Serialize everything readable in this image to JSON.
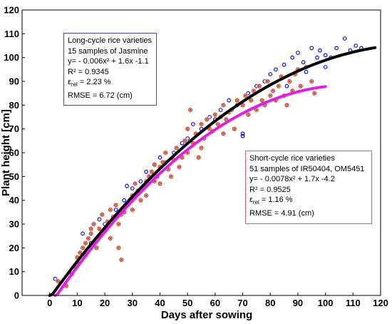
{
  "chart_data": {
    "type": "scatter",
    "title": "",
    "xlabel": "Days after sowing",
    "ylabel": "Plant height [cm]",
    "xlim": [
      -10,
      120
    ],
    "ylim": [
      0,
      120
    ],
    "x_ticks": [
      "0",
      "10",
      "20",
      "30",
      "40",
      "50",
      "60",
      "70",
      "80",
      "90",
      "100",
      "110",
      "120"
    ],
    "y_ticks": [
      "0",
      "10",
      "20",
      "30",
      "40",
      "50",
      "60",
      "70",
      "80",
      "90",
      "100",
      "110",
      "120"
    ],
    "grid": false,
    "series": [
      {
        "group": "long-cycle",
        "marker": "circle",
        "color": "#1010e0",
        "points": [
          [
            2,
            7
          ],
          [
            12,
            26
          ],
          [
            15,
            22
          ],
          [
            18,
            32
          ],
          [
            20,
            30
          ],
          [
            24,
            36
          ],
          [
            27,
            40
          ],
          [
            28,
            46
          ],
          [
            30,
            45
          ],
          [
            33,
            48
          ],
          [
            35,
            52
          ],
          [
            38,
            55
          ],
          [
            40,
            58
          ],
          [
            42,
            56
          ],
          [
            45,
            60
          ],
          [
            48,
            64
          ],
          [
            50,
            66
          ],
          [
            52,
            72
          ],
          [
            55,
            70
          ],
          [
            58,
            75
          ],
          [
            60,
            74
          ],
          [
            62,
            78
          ],
          [
            65,
            82
          ],
          [
            68,
            80
          ],
          [
            70,
            67
          ],
          [
            70,
            68
          ],
          [
            72,
            85
          ],
          [
            75,
            88
          ],
          [
            78,
            90
          ],
          [
            80,
            93
          ],
          [
            82,
            95
          ],
          [
            85,
            97
          ],
          [
            86,
            88
          ],
          [
            88,
            100
          ],
          [
            90,
            102
          ],
          [
            92,
            98
          ],
          [
            93,
            94
          ],
          [
            95,
            104
          ],
          [
            97,
            100
          ],
          [
            98,
            103
          ],
          [
            100,
            96
          ],
          [
            100,
            101
          ],
          [
            102,
            100
          ],
          [
            104,
            104
          ],
          [
            107,
            108
          ],
          [
            109,
            103
          ],
          [
            111,
            105
          ],
          [
            113,
            104
          ]
        ]
      },
      {
        "group": "short-cycle",
        "marker": "circle",
        "color": "#a05010",
        "points": [
          [
            3,
            6
          ],
          [
            6,
            4
          ],
          [
            8,
            9
          ],
          [
            9,
            12
          ],
          [
            10,
            14
          ],
          [
            10,
            16
          ],
          [
            11,
            18
          ],
          [
            12,
            20
          ],
          [
            13,
            17
          ],
          [
            13,
            22
          ],
          [
            14,
            24
          ],
          [
            15,
            28
          ],
          [
            15,
            26
          ],
          [
            16,
            30
          ],
          [
            17,
            20
          ],
          [
            18,
            25
          ],
          [
            18,
            28
          ],
          [
            19,
            34
          ],
          [
            20,
            27
          ],
          [
            21,
            31
          ],
          [
            22,
            24
          ],
          [
            22,
            36
          ],
          [
            23,
            33
          ],
          [
            24,
            38
          ],
          [
            25,
            30
          ],
          [
            25,
            20
          ],
          [
            26,
            34
          ],
          [
            26,
            15
          ],
          [
            27,
            35
          ],
          [
            28,
            38
          ],
          [
            29,
            40
          ],
          [
            30,
            42
          ],
          [
            30,
            36
          ],
          [
            31,
            47
          ],
          [
            32,
            44
          ],
          [
            33,
            40
          ],
          [
            34,
            46
          ],
          [
            35,
            48
          ],
          [
            35,
            42
          ],
          [
            36,
            50
          ],
          [
            37,
            52
          ],
          [
            38,
            48
          ],
          [
            38,
            55
          ],
          [
            39,
            50
          ],
          [
            40,
            54
          ],
          [
            40,
            47
          ],
          [
            41,
            56
          ],
          [
            42,
            60
          ],
          [
            43,
            53
          ],
          [
            44,
            50
          ],
          [
            45,
            57
          ],
          [
            46,
            62
          ],
          [
            47,
            54
          ],
          [
            48,
            58
          ],
          [
            49,
            65
          ],
          [
            50,
            60
          ],
          [
            50,
            70
          ],
          [
            51,
            78
          ],
          [
            52,
            64
          ],
          [
            53,
            68
          ],
          [
            54,
            58
          ],
          [
            55,
            72
          ],
          [
            55,
            62
          ],
          [
            56,
            66
          ],
          [
            57,
            74
          ],
          [
            58,
            70
          ],
          [
            59,
            69
          ],
          [
            60,
            76
          ],
          [
            61,
            72
          ],
          [
            62,
            75
          ],
          [
            63,
            68
          ],
          [
            63,
            80
          ],
          [
            64,
            74
          ],
          [
            65,
            77
          ],
          [
            66,
            78
          ],
          [
            67,
            70
          ],
          [
            68,
            82
          ],
          [
            70,
            80
          ],
          [
            71,
            84
          ],
          [
            72,
            76
          ],
          [
            73,
            82
          ],
          [
            74,
            86
          ],
          [
            75,
            78
          ],
          [
            76,
            88
          ],
          [
            77,
            82
          ],
          [
            78,
            80
          ],
          [
            79,
            90
          ],
          [
            80,
            84
          ],
          [
            81,
            86
          ],
          [
            82,
            82
          ],
          [
            83,
            88
          ],
          [
            84,
            92
          ],
          [
            85,
            84
          ],
          [
            86,
            80
          ],
          [
            87,
            90
          ],
          [
            88,
            86
          ],
          [
            89,
            93
          ],
          [
            90,
            95
          ],
          [
            91,
            88
          ],
          [
            93,
            96
          ],
          [
            95,
            90
          ],
          [
            96,
            85
          ]
        ]
      }
    ],
    "fits": [
      {
        "group": "long-cycle",
        "color": "#000000",
        "equation": {
          "a": -0.006,
          "b": 1.6,
          "c": -1.1
        },
        "x_range": [
          0,
          118
        ]
      },
      {
        "group": "short-cycle",
        "color": "#e020e0",
        "equation": {
          "a": -0.0078,
          "b": 1.7,
          "c": -4.2
        },
        "x_range": [
          2,
          100
        ]
      }
    ]
  },
  "legend_long": {
    "line1": "Long-cycle rice varieties",
    "line2": "15 samples of Jasmine",
    "line3": "y= - 0.006x² + 1.6x -1.1",
    "line4": "R² = 0.9345",
    "eps_symbol": "ε",
    "eps_sub": "rel",
    "eps_value": " = 2.23 %",
    "line6": "RMSE = 6.72 (cm)",
    "border_color": "#4a4aa8"
  },
  "legend_short": {
    "line1": "Short-cycle rice varieties",
    "line2": "51 samples of IR50404, OM5451",
    "line3": "y= - 0.0078x² + 1.7x -4.2",
    "line4": "R² = 0.9525",
    "eps_symbol": "ε",
    "eps_sub": "rel",
    "eps_value": " = 1.16 %",
    "line6": "RMSE = 4.91 (cm)",
    "border_color": "#c86464"
  }
}
